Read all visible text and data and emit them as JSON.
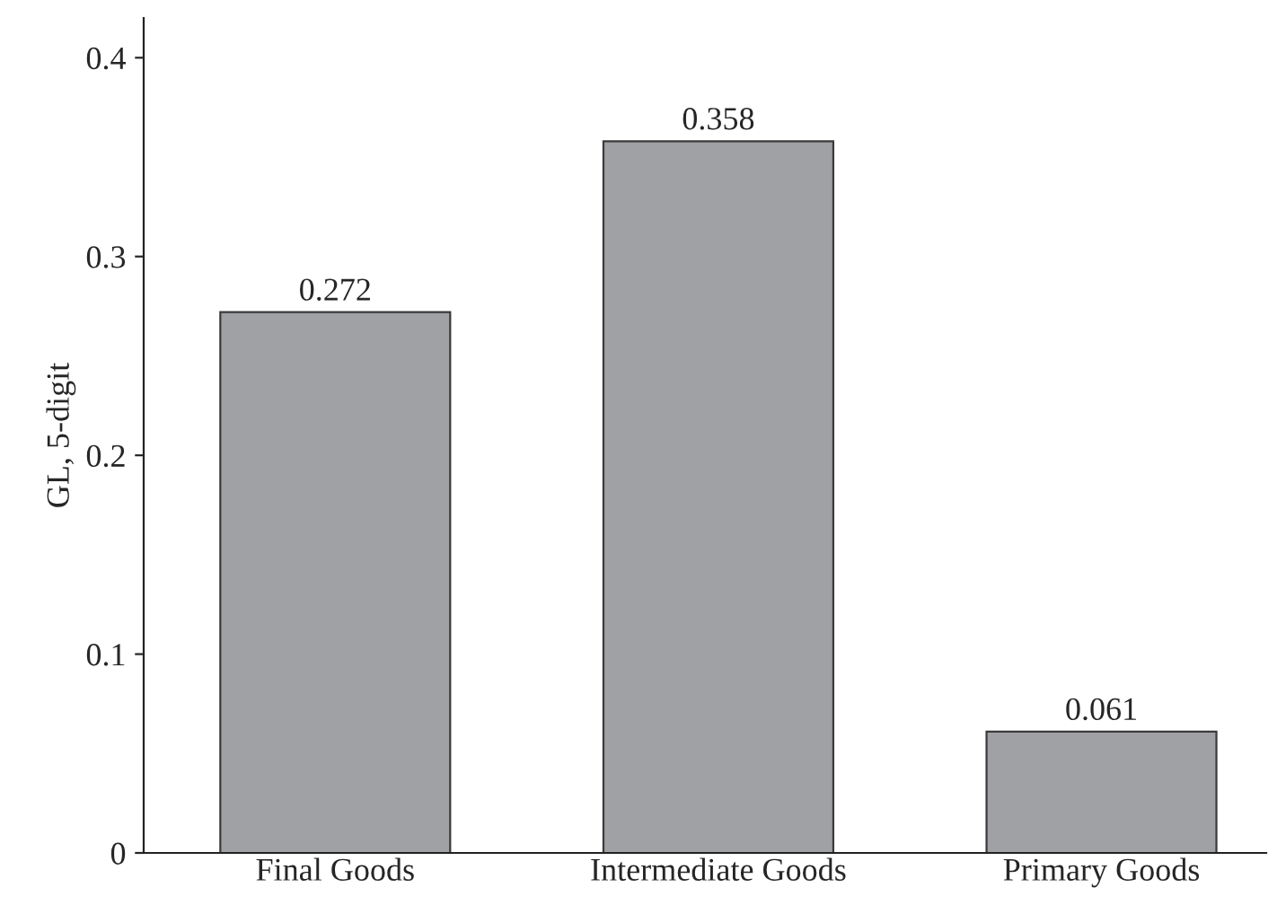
{
  "chart_data": {
    "type": "bar",
    "ylabel": "GL, 5-digit",
    "categories": [
      "Final Goods",
      "Intermediate Goods",
      "Primary Goods"
    ],
    "values": [
      0.272,
      0.358,
      0.061
    ],
    "color": "#a0a1a5",
    "ylim": [
      0,
      0.42
    ],
    "yticks": [
      0,
      0.1,
      0.2,
      0.3,
      0.4
    ],
    "grid": false,
    "data_labels": true
  }
}
